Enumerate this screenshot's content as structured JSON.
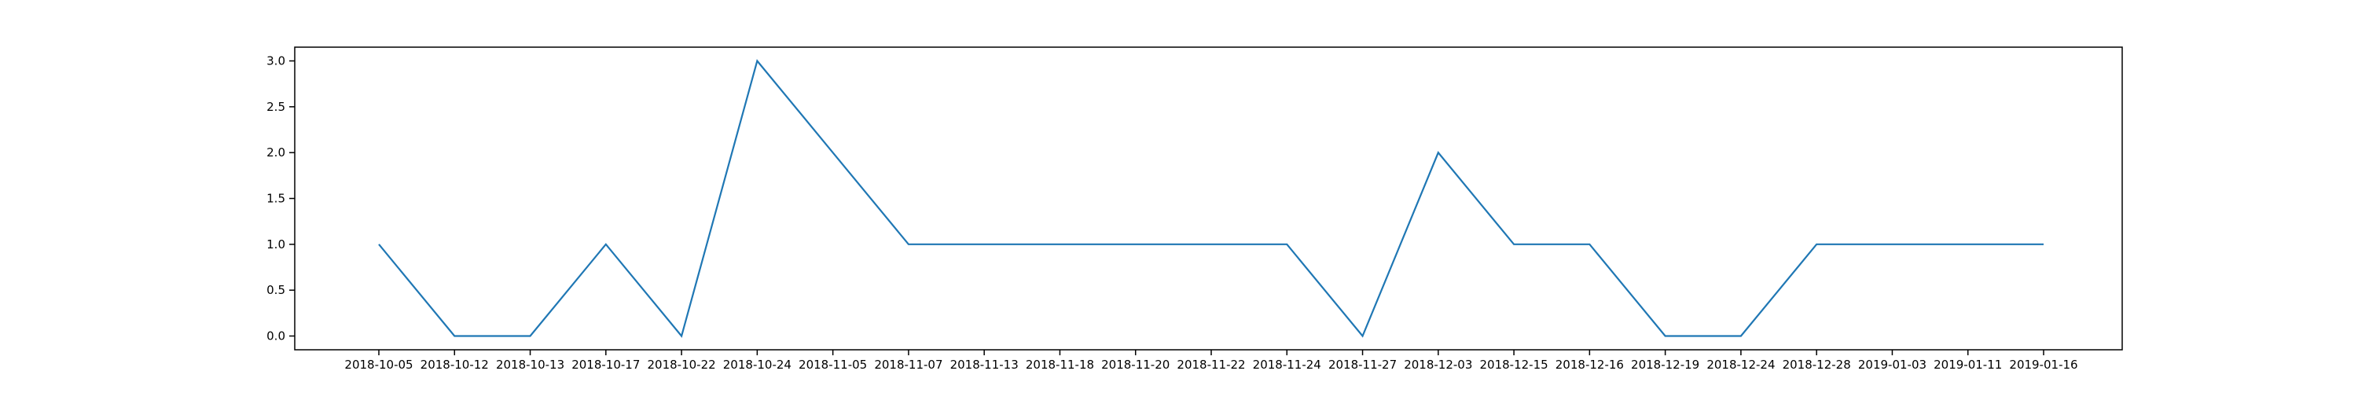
{
  "chart_data": {
    "type": "line",
    "categories": [
      "2018-10-05",
      "2018-10-12",
      "2018-10-13",
      "2018-10-17",
      "2018-10-22",
      "2018-10-24",
      "2018-11-05",
      "2018-11-07",
      "2018-11-13",
      "2018-11-18",
      "2018-11-20",
      "2018-11-22",
      "2018-11-24",
      "2018-11-27",
      "2018-12-03",
      "2018-12-15",
      "2018-12-16",
      "2018-12-19",
      "2018-12-24",
      "2018-12-28",
      "2019-01-03",
      "2019-01-11",
      "2019-01-16"
    ],
    "series": [
      {
        "values": [
          1,
          0,
          0,
          1,
          0,
          3,
          2,
          1,
          1,
          1,
          1,
          1,
          1,
          0,
          2,
          1,
          1,
          0,
          0,
          1,
          1,
          1,
          1
        ],
        "color": "#1f77b4"
      }
    ],
    "yticks": [
      "0.0",
      "0.5",
      "1.0",
      "1.5",
      "2.0",
      "2.5",
      "3.0"
    ],
    "ylim": [
      -0.15,
      3.15
    ],
    "grid": false,
    "title": "",
    "xlabel": "",
    "ylabel": ""
  }
}
